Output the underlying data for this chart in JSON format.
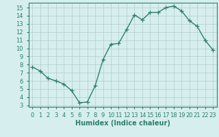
{
  "x": [
    0,
    1,
    2,
    3,
    4,
    5,
    6,
    7,
    8,
    9,
    10,
    11,
    12,
    13,
    14,
    15,
    16,
    17,
    18,
    19,
    20,
    21,
    22,
    23
  ],
  "y": [
    7.7,
    7.2,
    6.3,
    6.0,
    5.6,
    4.8,
    3.3,
    3.4,
    5.4,
    8.6,
    10.5,
    10.6,
    12.3,
    14.1,
    13.5,
    14.4,
    14.4,
    15.0,
    15.2,
    14.6,
    13.4,
    12.7,
    11.0,
    9.8
  ],
  "line_color": "#2e7d6e",
  "marker": "+",
  "markersize": 4,
  "linewidth": 1.0,
  "markeredgewidth": 0.9,
  "background_color": "#d6eeee",
  "grid_color": "#b0cccc",
  "xlabel": "Humidex (Indice chaleur)",
  "xlabel_fontsize": 7,
  "tick_fontsize": 6,
  "xlim": [
    -0.5,
    23.5
  ],
  "ylim": [
    2.8,
    15.6
  ],
  "yticks": [
    3,
    4,
    5,
    6,
    7,
    8,
    9,
    10,
    11,
    12,
    13,
    14,
    15
  ],
  "xticks": [
    0,
    1,
    2,
    3,
    4,
    5,
    6,
    7,
    8,
    9,
    10,
    11,
    12,
    13,
    14,
    15,
    16,
    17,
    18,
    19,
    20,
    21,
    22,
    23
  ]
}
